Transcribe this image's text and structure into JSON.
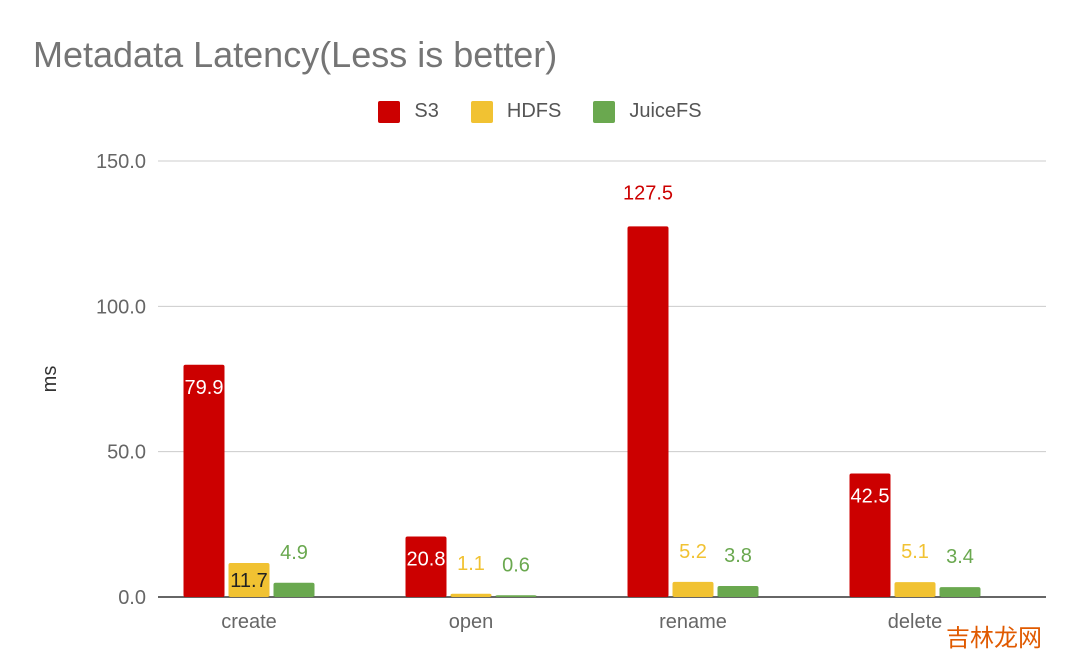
{
  "chart_data": {
    "type": "bar",
    "title": "Metadata Latency(Less is better)",
    "ylabel": "ms",
    "xlabel": "",
    "ylim": [
      0,
      150
    ],
    "yticks": [
      "0.0",
      "50.0",
      "100.0",
      "150.0"
    ],
    "ytick_values": [
      0,
      50,
      100,
      150
    ],
    "grid": true,
    "legend_position": "top",
    "categories": [
      "create",
      "open",
      "rename",
      "delete"
    ],
    "series": [
      {
        "name": "S3",
        "color": "#cc0000",
        "values": [
          79.9,
          20.8,
          127.5,
          42.5
        ],
        "labels": [
          "79.9",
          "20.8",
          "127.5",
          "42.5"
        ]
      },
      {
        "name": "HDFS",
        "color": "#f1c232",
        "values": [
          11.7,
          1.1,
          5.2,
          5.1
        ],
        "labels": [
          "11.7",
          "1.1",
          "5.2",
          "5.1"
        ]
      },
      {
        "name": "JuiceFS",
        "color": "#6aa84f",
        "values": [
          4.9,
          0.6,
          3.8,
          3.4
        ],
        "labels": [
          "4.9",
          "0.6",
          "3.8",
          "3.4"
        ]
      }
    ]
  },
  "watermark": "吉林龙网"
}
